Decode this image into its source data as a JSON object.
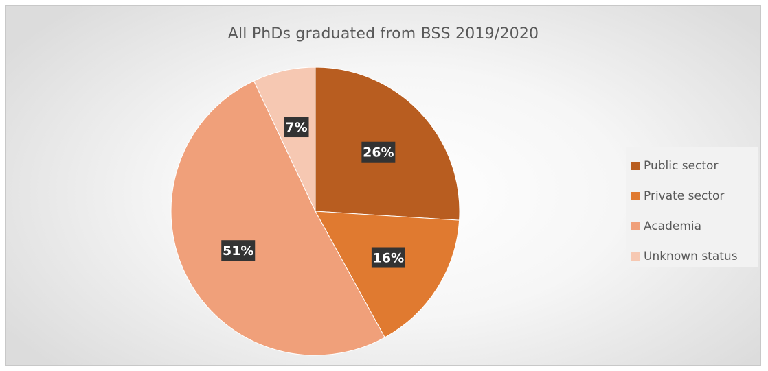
{
  "chart_data": {
    "type": "pie",
    "title": "All PhDs graduated from BSS 2019/2020",
    "categories": [
      "Public sector",
      "Private sector",
      "Academia",
      "Unknown status"
    ],
    "values": [
      26,
      16,
      51,
      7
    ],
    "labels": [
      "26%",
      "16%",
      "51%",
      "7%"
    ],
    "colors": [
      "#b85d20",
      "#e07a30",
      "#f0a07a",
      "#f6c8b2"
    ],
    "legend_position": "right"
  }
}
